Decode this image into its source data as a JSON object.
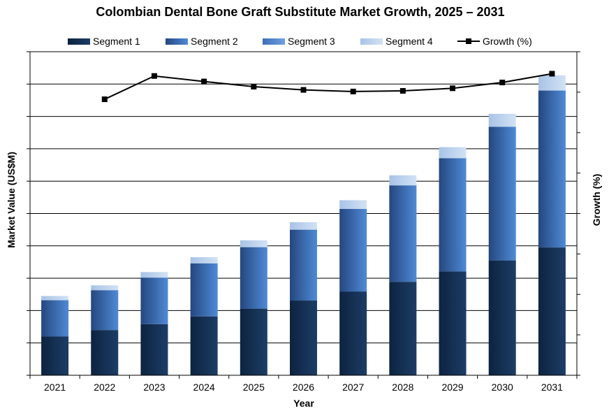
{
  "chart_data": {
    "type": "bar",
    "stacked": true,
    "title": "Colombian Dental Bone Graft Substitute Market Growth, 2025 – 2031",
    "xlabel": "Year",
    "ylabel": "Market Value (US$M)",
    "y2label": "Growth (%)",
    "categories": [
      "2021",
      "2022",
      "2023",
      "2024",
      "2025",
      "2026",
      "2027",
      "2028",
      "2029",
      "2030",
      "2031"
    ],
    "ylim": [
      0,
      100
    ],
    "y2lim": [
      0,
      100
    ],
    "grid": true,
    "legend_position": "top",
    "series": [
      {
        "name": "Segment 1",
        "kind": "bar",
        "color": "#17375e",
        "values": [
          12,
          14,
          15.8,
          18.2,
          20.6,
          23.1,
          25.9,
          28.9,
          32.1,
          35.5,
          39.5
        ]
      },
      {
        "name": "Segment 2",
        "kind": "bar",
        "color": "#2f5597",
        "values": [
          11.2,
          12.3,
          14.4,
          16.4,
          19,
          21.9,
          25.5,
          29.8,
          35,
          41.3,
          48.5
        ]
      },
      {
        "name": "Segment 3",
        "kind": "bar",
        "color": "#4a7ec8",
        "values": [
          0,
          0,
          0,
          0,
          0,
          0,
          0,
          0,
          0,
          0,
          0
        ]
      },
      {
        "name": "Segment 4",
        "kind": "bar",
        "color": "#b4cde9",
        "values": [
          1.3,
          1.5,
          1.7,
          1.9,
          2.1,
          2.3,
          2.7,
          3.1,
          3.4,
          4,
          4.7
        ]
      },
      {
        "name": "Growth (%)",
        "kind": "line",
        "axis": "right",
        "color": "#000000",
        "values": [
          null,
          85.3,
          92.5,
          90.8,
          89.2,
          88.2,
          87.7,
          87.9,
          88.7,
          90.5,
          93.2
        ]
      }
    ]
  }
}
